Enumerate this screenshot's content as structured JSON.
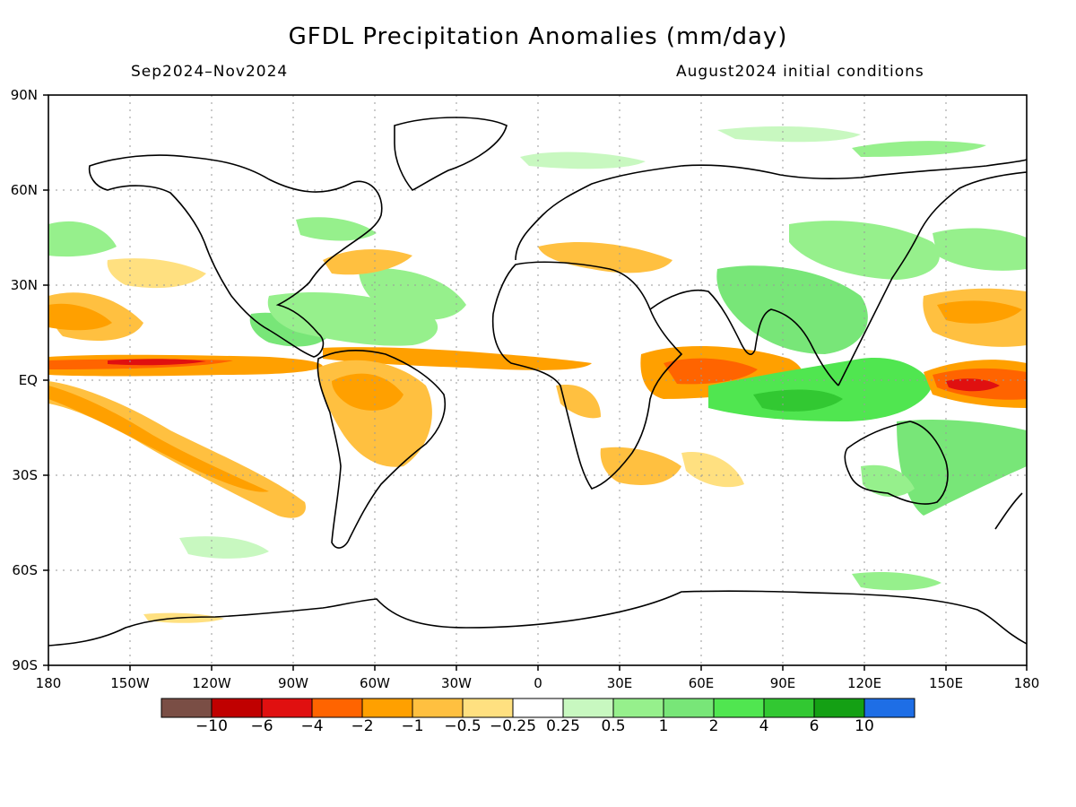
{
  "map": {
    "title": "GFDL Precipitation Anomalies (mm/day)",
    "period": "Sep2024–Nov2024",
    "initial_conditions": "August2024 initial conditions",
    "lat_labels": [
      "90N",
      "60N",
      "30N",
      "EQ",
      "30S",
      "60S",
      "90S"
    ],
    "lon_labels": [
      "180",
      "150W",
      "120W",
      "90W",
      "60W",
      "30W",
      "0",
      "30E",
      "60E",
      "90E",
      "120E",
      "150E",
      "180"
    ],
    "colorbar": {
      "colors": [
        "#7a4e45",
        "#c00000",
        "#e01010",
        "#ff6400",
        "#ffa000",
        "#ffc040",
        "#ffe080",
        "#ffffff",
        "#c8f8c0",
        "#96f08c",
        "#78e678",
        "#50e650",
        "#32c832",
        "#14a014",
        "#1e6ee6"
      ],
      "labels": [
        "−10",
        "−6",
        "−4",
        "−2",
        "−1",
        "−0.5",
        "−0.25",
        "0.25",
        "0.5",
        "1",
        "2",
        "4",
        "6",
        "10"
      ]
    }
  }
}
